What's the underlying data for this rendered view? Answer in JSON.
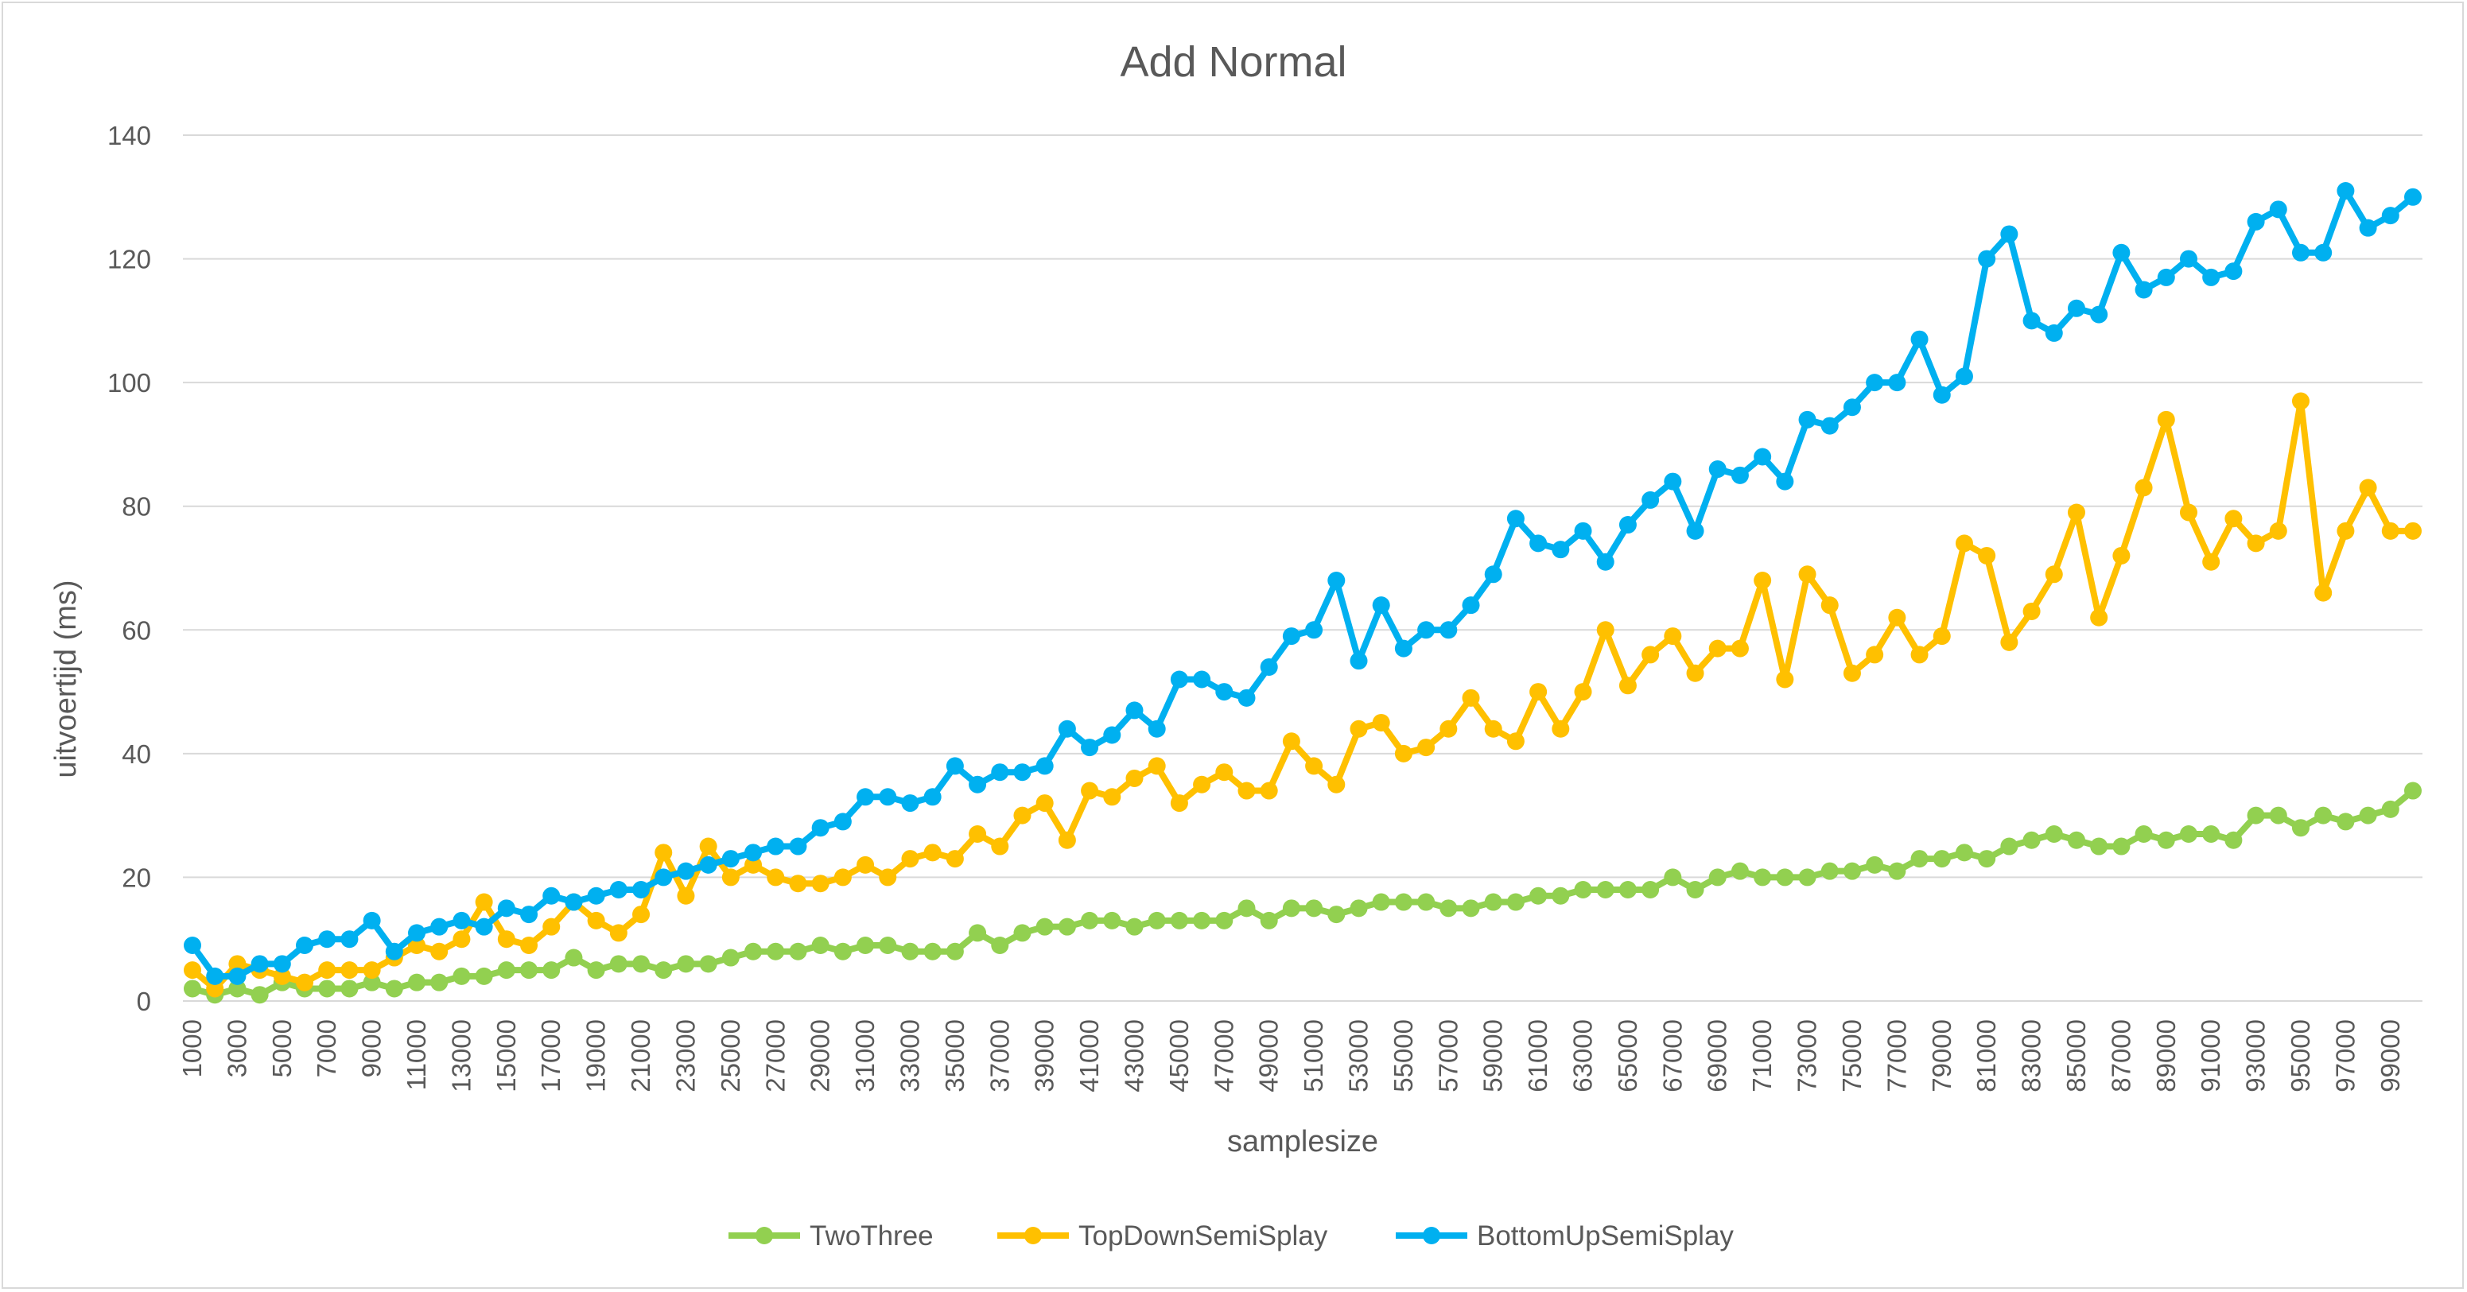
{
  "chart_data": {
    "type": "line",
    "title": "Add Normal",
    "xlabel": "samplesize",
    "ylabel": "uitvoertijd (ms)",
    "ylim": [
      0,
      140
    ],
    "yticks": [
      "0",
      "20",
      "40",
      "60",
      "80",
      "100",
      "120",
      "140"
    ],
    "grid": true,
    "legend_position": "bottom",
    "x": [
      1000,
      2000,
      3000,
      4000,
      5000,
      6000,
      7000,
      8000,
      9000,
      10000,
      11000,
      12000,
      13000,
      14000,
      15000,
      16000,
      17000,
      18000,
      19000,
      20000,
      21000,
      22000,
      23000,
      24000,
      25000,
      26000,
      27000,
      28000,
      29000,
      30000,
      31000,
      32000,
      33000,
      34000,
      35000,
      36000,
      37000,
      38000,
      39000,
      40000,
      41000,
      42000,
      43000,
      44000,
      45000,
      46000,
      47000,
      48000,
      49000,
      50000,
      51000,
      52000,
      53000,
      54000,
      55000,
      56000,
      57000,
      58000,
      59000,
      60000,
      61000,
      62000,
      63000,
      64000,
      65000,
      66000,
      67000,
      68000,
      69000,
      70000,
      71000,
      72000,
      73000,
      74000,
      75000,
      76000,
      77000,
      78000,
      79000,
      80000,
      81000,
      82000,
      83000,
      84000,
      85000,
      86000,
      87000,
      88000,
      89000,
      90000,
      91000,
      92000,
      93000,
      94000,
      95000,
      96000,
      97000,
      98000,
      99000,
      100000
    ],
    "xtick_labels": [
      "1000",
      "3000",
      "5000",
      "7000",
      "9000",
      "11000",
      "13000",
      "15000",
      "17000",
      "19000",
      "21000",
      "23000",
      "25000",
      "27000",
      "29000",
      "31000",
      "33000",
      "35000",
      "37000",
      "39000",
      "41000",
      "43000",
      "45000",
      "47000",
      "49000",
      "51000",
      "53000",
      "55000",
      "57000",
      "59000",
      "61000",
      "63000",
      "65000",
      "67000",
      "69000",
      "71000",
      "73000",
      "75000",
      "77000",
      "79000",
      "81000",
      "83000",
      "85000",
      "87000",
      "89000",
      "91000",
      "93000",
      "95000",
      "97000",
      "99000"
    ],
    "series": [
      {
        "name": "TwoThree",
        "color": "#92d050",
        "values": [
          2,
          1,
          2,
          1,
          3,
          2,
          2,
          2,
          3,
          2,
          3,
          3,
          4,
          4,
          5,
          5,
          5,
          7,
          5,
          6,
          6,
          5,
          6,
          6,
          7,
          8,
          8,
          8,
          9,
          8,
          9,
          9,
          8,
          8,
          8,
          11,
          9,
          11,
          12,
          12,
          13,
          13,
          12,
          13,
          13,
          13,
          13,
          15,
          13,
          15,
          15,
          14,
          15,
          16,
          16,
          16,
          15,
          15,
          16,
          16,
          17,
          17,
          18,
          18,
          18,
          18,
          20,
          18,
          20,
          21,
          20,
          20,
          20,
          21,
          21,
          22,
          21,
          23,
          23,
          24,
          23,
          25,
          26,
          27,
          26,
          25,
          25,
          27,
          26,
          27,
          27,
          26,
          30,
          30,
          28,
          30,
          29,
          30,
          31,
          34
        ]
      },
      {
        "name": "TopDownSemiSplay",
        "color": "#ffc000",
        "values": [
          5,
          2,
          6,
          5,
          4,
          3,
          5,
          5,
          5,
          7,
          9,
          8,
          10,
          16,
          10,
          9,
          12,
          16,
          13,
          11,
          14,
          24,
          17,
          25,
          20,
          22,
          20,
          19,
          19,
          20,
          22,
          20,
          23,
          24,
          23,
          27,
          25,
          30,
          32,
          26,
          34,
          33,
          36,
          38,
          32,
          35,
          37,
          34,
          34,
          42,
          38,
          35,
          44,
          45,
          40,
          41,
          44,
          49,
          44,
          42,
          50,
          44,
          50,
          60,
          51,
          56,
          59,
          53,
          57,
          57,
          68,
          52,
          69,
          64,
          53,
          56,
          62,
          56,
          59,
          74,
          72,
          58,
          63,
          69,
          79,
          62,
          72,
          83,
          94,
          79,
          71,
          78,
          74,
          76,
          97,
          66,
          76,
          83,
          76,
          76
        ]
      },
      {
        "name": "BottomUpSemiSplay",
        "color": "#00b0f0",
        "values": [
          9,
          4,
          4,
          6,
          6,
          9,
          10,
          10,
          13,
          8,
          11,
          12,
          13,
          12,
          15,
          14,
          17,
          16,
          17,
          18,
          18,
          20,
          21,
          22,
          23,
          24,
          25,
          25,
          28,
          29,
          33,
          33,
          32,
          33,
          38,
          35,
          37,
          37,
          38,
          44,
          41,
          43,
          47,
          44,
          52,
          52,
          50,
          49,
          54,
          59,
          60,
          68,
          55,
          64,
          57,
          60,
          60,
          64,
          69,
          78,
          74,
          73,
          76,
          71,
          77,
          81,
          84,
          76,
          86,
          85,
          88,
          84,
          94,
          93,
          96,
          100,
          100,
          107,
          98,
          101,
          120,
          124,
          110,
          108,
          112,
          111,
          121,
          115,
          117,
          120,
          117,
          118,
          126,
          128,
          121,
          121,
          131,
          125,
          127,
          130
        ]
      }
    ]
  }
}
